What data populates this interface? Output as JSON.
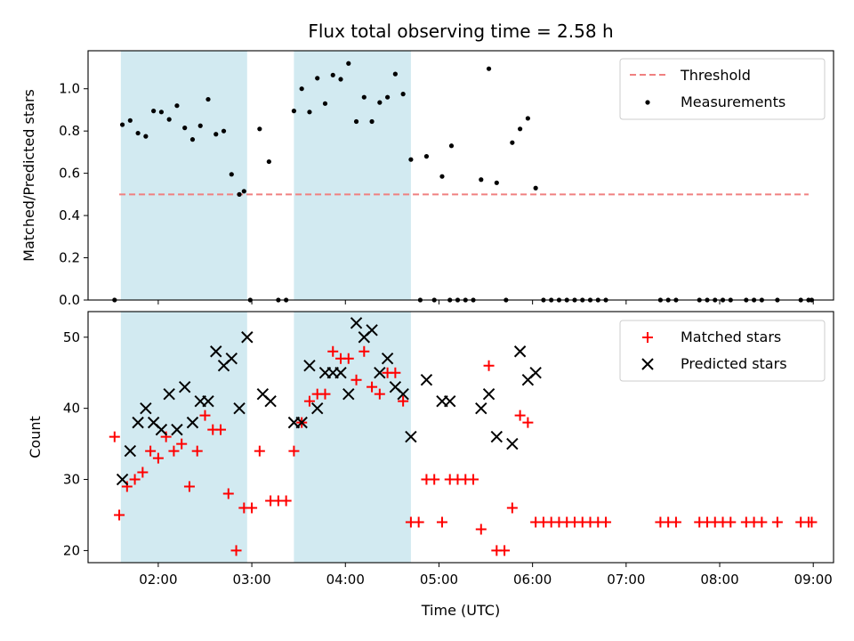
{
  "title": "Flux total observing time = 2.58 h",
  "colors": {
    "threshold": "#f08080",
    "measurements": "#000000",
    "matched": "#ff0000",
    "predicted": "#000000",
    "shade": "#add8e6"
  },
  "chart_data": [
    {
      "type": "scatter",
      "ylabel": "Matched/Predicted stars",
      "xlim": [
        "01:15",
        "09:13"
      ],
      "ylim": [
        0,
        1.18
      ],
      "yticks": [
        0.0,
        0.2,
        0.4,
        0.6,
        0.8,
        1.0
      ],
      "ytick_labels": [
        "0.0",
        "0.2",
        "0.4",
        "0.6",
        "0.8",
        "1.0"
      ],
      "legend_position": "top-right",
      "threshold": {
        "name": "Threshold",
        "y": 0.5,
        "x_range": [
          "01:35",
          "08:57"
        ]
      },
      "shaded_intervals": [
        [
          "01:36",
          "02:57"
        ],
        [
          "03:27",
          "04:42"
        ]
      ],
      "series": [
        {
          "name": "Measurements",
          "points": [
            [
              "01:32",
              0.0
            ],
            [
              "01:37",
              0.83
            ],
            [
              "01:42",
              0.85
            ],
            [
              "01:47",
              0.79
            ],
            [
              "01:52",
              0.775
            ],
            [
              "01:57",
              0.895
            ],
            [
              "02:02",
              0.89
            ],
            [
              "02:07",
              0.855
            ],
            [
              "02:12",
              0.92
            ],
            [
              "02:17",
              0.815
            ],
            [
              "02:22",
              0.76
            ],
            [
              "02:27",
              0.825
            ],
            [
              "02:32",
              0.95
            ],
            [
              "02:37",
              0.785
            ],
            [
              "02:42",
              0.8
            ],
            [
              "02:47",
              0.595
            ],
            [
              "02:52",
              0.5
            ],
            [
              "02:55",
              0.515
            ],
            [
              "02:59",
              0.0
            ],
            [
              "03:05",
              0.81
            ],
            [
              "03:11",
              0.655
            ],
            [
              "03:17",
              0.0
            ],
            [
              "03:22",
              0.0
            ],
            [
              "03:27",
              0.895
            ],
            [
              "03:32",
              1.0
            ],
            [
              "03:37",
              0.89
            ],
            [
              "03:42",
              1.05
            ],
            [
              "03:47",
              0.93
            ],
            [
              "03:52",
              1.065
            ],
            [
              "03:57",
              1.045
            ],
            [
              "04:02",
              1.12
            ],
            [
              "04:07",
              0.845
            ],
            [
              "04:12",
              0.96
            ],
            [
              "04:17",
              0.845
            ],
            [
              "04:22",
              0.935
            ],
            [
              "04:27",
              0.96
            ],
            [
              "04:32",
              1.07
            ],
            [
              "04:37",
              0.975
            ],
            [
              "04:42",
              0.665
            ],
            [
              "04:48",
              0.0
            ],
            [
              "04:52",
              0.68
            ],
            [
              "04:57",
              0.0
            ],
            [
              "05:02",
              0.585
            ],
            [
              "05:07",
              0.0
            ],
            [
              "05:08",
              0.73
            ],
            [
              "05:12",
              0.0
            ],
            [
              "05:17",
              0.0
            ],
            [
              "05:22",
              0.0
            ],
            [
              "05:27",
              0.57
            ],
            [
              "05:32",
              1.095
            ],
            [
              "05:37",
              0.555
            ],
            [
              "05:43",
              0.0
            ],
            [
              "05:47",
              0.745
            ],
            [
              "05:52",
              0.81
            ],
            [
              "05:57",
              0.86
            ],
            [
              "06:02",
              0.53
            ],
            [
              "06:07",
              0.0
            ],
            [
              "06:12",
              0.0
            ],
            [
              "06:17",
              0.0
            ],
            [
              "06:22",
              0.0
            ],
            [
              "06:27",
              0.0
            ],
            [
              "06:32",
              0.0
            ],
            [
              "06:37",
              0.0
            ],
            [
              "06:42",
              0.0
            ],
            [
              "06:47",
              0.0
            ],
            [
              "07:22",
              0.0
            ],
            [
              "07:27",
              0.0
            ],
            [
              "07:32",
              0.0
            ],
            [
              "07:47",
              0.0
            ],
            [
              "07:52",
              0.0
            ],
            [
              "07:57",
              0.0
            ],
            [
              "08:02",
              0.0
            ],
            [
              "08:07",
              0.0
            ],
            [
              "08:17",
              0.0
            ],
            [
              "08:22",
              0.0
            ],
            [
              "08:27",
              0.0
            ],
            [
              "08:37",
              0.0
            ],
            [
              "08:52",
              0.0
            ],
            [
              "08:57",
              0.0
            ],
            [
              "08:59",
              0.0
            ]
          ]
        }
      ]
    },
    {
      "type": "scatter",
      "xlabel": "Time (UTC)",
      "ylabel": "Count",
      "xlim": [
        "01:15",
        "09:13"
      ],
      "ylim": [
        18.3,
        53.6
      ],
      "yticks": [
        20,
        30,
        40,
        50
      ],
      "ytick_labels": [
        "20",
        "30",
        "40",
        "50"
      ],
      "xticks": [
        "02:00",
        "03:00",
        "04:00",
        "05:00",
        "06:00",
        "07:00",
        "08:00",
        "09:00"
      ],
      "legend_position": "top-right",
      "shaded_intervals": [
        [
          "01:36",
          "02:57"
        ],
        [
          "03:27",
          "04:42"
        ]
      ],
      "series": [
        {
          "name": "Matched stars",
          "marker": "plus",
          "points": [
            [
              "01:32",
              36
            ],
            [
              "01:35",
              25
            ],
            [
              "01:40",
              29
            ],
            [
              "01:45",
              30
            ],
            [
              "01:50",
              31
            ],
            [
              "01:55",
              34
            ],
            [
              "02:00",
              33
            ],
            [
              "02:05",
              36
            ],
            [
              "02:10",
              34
            ],
            [
              "02:15",
              35
            ],
            [
              "02:20",
              29
            ],
            [
              "02:25",
              34
            ],
            [
              "02:30",
              39
            ],
            [
              "02:35",
              37
            ],
            [
              "02:40",
              37
            ],
            [
              "02:45",
              28
            ],
            [
              "02:50",
              20
            ],
            [
              "02:55",
              26
            ],
            [
              "03:00",
              26
            ],
            [
              "03:05",
              34
            ],
            [
              "03:12",
              27
            ],
            [
              "03:17",
              27
            ],
            [
              "03:22",
              27
            ],
            [
              "03:27",
              34
            ],
            [
              "03:32",
              38
            ],
            [
              "03:37",
              41
            ],
            [
              "03:42",
              42
            ],
            [
              "03:47",
              42
            ],
            [
              "03:52",
              48
            ],
            [
              "03:57",
              47
            ],
            [
              "04:02",
              47
            ],
            [
              "04:07",
              44
            ],
            [
              "04:12",
              48
            ],
            [
              "04:17",
              43
            ],
            [
              "04:22",
              42
            ],
            [
              "04:27",
              45
            ],
            [
              "04:32",
              45
            ],
            [
              "04:37",
              41
            ],
            [
              "04:42",
              24
            ],
            [
              "04:47",
              24
            ],
            [
              "04:52",
              30
            ],
            [
              "04:57",
              30
            ],
            [
              "05:02",
              24
            ],
            [
              "05:07",
              30
            ],
            [
              "05:12",
              30
            ],
            [
              "05:17",
              30
            ],
            [
              "05:22",
              30
            ],
            [
              "05:27",
              23
            ],
            [
              "05:32",
              46
            ],
            [
              "05:37",
              20
            ],
            [
              "05:42",
              20
            ],
            [
              "05:47",
              26
            ],
            [
              "05:52",
              39
            ],
            [
              "05:57",
              38
            ],
            [
              "06:02",
              24
            ],
            [
              "06:07",
              24
            ],
            [
              "06:12",
              24
            ],
            [
              "06:17",
              24
            ],
            [
              "06:22",
              24
            ],
            [
              "06:27",
              24
            ],
            [
              "06:32",
              24
            ],
            [
              "06:37",
              24
            ],
            [
              "06:42",
              24
            ],
            [
              "06:47",
              24
            ],
            [
              "07:22",
              24
            ],
            [
              "07:27",
              24
            ],
            [
              "07:32",
              24
            ],
            [
              "07:47",
              24
            ],
            [
              "07:52",
              24
            ],
            [
              "07:57",
              24
            ],
            [
              "08:02",
              24
            ],
            [
              "08:07",
              24
            ],
            [
              "08:17",
              24
            ],
            [
              "08:22",
              24
            ],
            [
              "08:27",
              24
            ],
            [
              "08:37",
              24
            ],
            [
              "08:52",
              24
            ],
            [
              "08:57",
              24
            ],
            [
              "08:59",
              24
            ]
          ]
        },
        {
          "name": "Predicted stars",
          "marker": "x",
          "points": [
            [
              "01:37",
              30
            ],
            [
              "01:42",
              34
            ],
            [
              "01:47",
              38
            ],
            [
              "01:52",
              40
            ],
            [
              "01:57",
              38
            ],
            [
              "02:02",
              37
            ],
            [
              "02:07",
              42
            ],
            [
              "02:12",
              37
            ],
            [
              "02:17",
              43
            ],
            [
              "02:22",
              38
            ],
            [
              "02:27",
              41
            ],
            [
              "02:32",
              41
            ],
            [
              "02:37",
              48
            ],
            [
              "02:42",
              46
            ],
            [
              "02:47",
              47
            ],
            [
              "02:52",
              40
            ],
            [
              "02:57",
              50
            ],
            [
              "03:07",
              42
            ],
            [
              "03:12",
              41
            ],
            [
              "03:27",
              38
            ],
            [
              "03:32",
              38
            ],
            [
              "03:37",
              46
            ],
            [
              "03:42",
              40
            ],
            [
              "03:47",
              45
            ],
            [
              "03:52",
              45
            ],
            [
              "03:57",
              45
            ],
            [
              "04:02",
              42
            ],
            [
              "04:07",
              52
            ],
            [
              "04:12",
              50
            ],
            [
              "04:17",
              51
            ],
            [
              "04:22",
              45
            ],
            [
              "04:27",
              47
            ],
            [
              "04:32",
              43
            ],
            [
              "04:37",
              42
            ],
            [
              "04:42",
              36
            ],
            [
              "04:52",
              44
            ],
            [
              "05:02",
              41
            ],
            [
              "05:07",
              41
            ],
            [
              "05:27",
              40
            ],
            [
              "05:32",
              42
            ],
            [
              "05:37",
              36
            ],
            [
              "05:47",
              35
            ],
            [
              "05:52",
              48
            ],
            [
              "05:57",
              44
            ],
            [
              "06:02",
              45
            ]
          ]
        }
      ]
    }
  ]
}
